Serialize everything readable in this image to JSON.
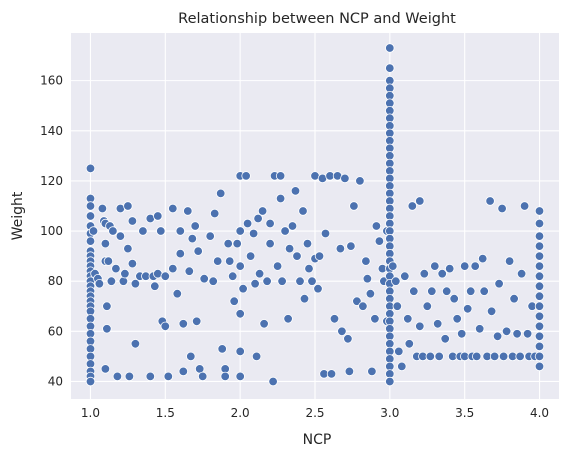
{
  "chart_data": {
    "type": "scatter",
    "title": "Relationship between NCP and Weight",
    "xlabel": "NCP",
    "ylabel": "Weight",
    "xlim": [
      0.87,
      4.13
    ],
    "ylim": [
      33,
      179
    ],
    "xticks": [
      "1.0",
      "1.5",
      "2.0",
      "2.5",
      "3.0",
      "3.5",
      "4.0"
    ],
    "xtick_values": [
      1.0,
      1.5,
      2.0,
      2.5,
      3.0,
      3.5,
      4.0
    ],
    "yticks": [
      "40",
      "60",
      "80",
      "100",
      "120",
      "140",
      "160"
    ],
    "ytick_values": [
      40,
      60,
      80,
      100,
      120,
      140,
      160
    ],
    "grid": true,
    "colors": {
      "background": "#EAEAF2",
      "grid": "#FFFFFF",
      "marker": "#4C72B0",
      "marker_edge": "#FFFFFF"
    },
    "series": [
      {
        "values": [
          [
            1.0,
            125
          ],
          [
            1.0,
            113
          ],
          [
            1.0,
            110
          ],
          [
            1.0,
            106
          ],
          [
            1.0,
            102
          ],
          [
            1.0,
            99
          ],
          [
            1.0,
            96
          ],
          [
            1.0,
            92
          ],
          [
            1.0,
            90
          ],
          [
            1.0,
            88
          ],
          [
            1.0,
            86
          ],
          [
            1.0,
            84
          ],
          [
            1.0,
            82
          ],
          [
            1.0,
            80
          ],
          [
            1.0,
            78
          ],
          [
            1.0,
            76
          ],
          [
            1.0,
            74
          ],
          [
            1.0,
            72
          ],
          [
            1.0,
            70
          ],
          [
            1.0,
            68
          ],
          [
            1.0,
            65
          ],
          [
            1.0,
            62
          ],
          [
            1.0,
            59
          ],
          [
            1.0,
            56
          ],
          [
            1.0,
            53
          ],
          [
            1.0,
            50
          ],
          [
            1.0,
            47
          ],
          [
            1.0,
            44
          ],
          [
            1.0,
            42
          ],
          [
            1.0,
            40
          ],
          [
            1.02,
            100
          ],
          [
            1.03,
            83
          ],
          [
            1.05,
            81
          ],
          [
            1.06,
            79
          ],
          [
            1.08,
            109
          ],
          [
            1.09,
            104
          ],
          [
            1.1,
            103
          ],
          [
            1.1,
            95
          ],
          [
            1.1,
            88
          ],
          [
            1.11,
            70
          ],
          [
            1.11,
            61
          ],
          [
            1.1,
            45
          ],
          [
            1.12,
            88
          ],
          [
            1.13,
            102
          ],
          [
            1.14,
            80
          ],
          [
            1.15,
            100
          ],
          [
            1.17,
            85
          ],
          [
            1.18,
            42
          ],
          [
            1.2,
            109
          ],
          [
            1.2,
            98
          ],
          [
            1.22,
            80
          ],
          [
            1.23,
            83
          ],
          [
            1.25,
            110
          ],
          [
            1.25,
            93
          ],
          [
            1.26,
            42
          ],
          [
            1.28,
            87
          ],
          [
            1.28,
            104
          ],
          [
            1.3,
            79
          ],
          [
            1.3,
            55
          ],
          [
            1.33,
            82
          ],
          [
            1.35,
            100
          ],
          [
            1.37,
            82
          ],
          [
            1.4,
            105
          ],
          [
            1.4,
            42
          ],
          [
            1.42,
            82
          ],
          [
            1.43,
            78
          ],
          [
            1.45,
            106
          ],
          [
            1.45,
            83
          ],
          [
            1.47,
            100
          ],
          [
            1.48,
            64
          ],
          [
            1.5,
            62
          ],
          [
            1.5,
            82
          ],
          [
            1.52,
            42
          ],
          [
            1.55,
            109
          ],
          [
            1.55,
            85
          ],
          [
            1.58,
            75
          ],
          [
            1.6,
            100
          ],
          [
            1.6,
            91
          ],
          [
            1.62,
            44
          ],
          [
            1.62,
            63
          ],
          [
            1.65,
            108
          ],
          [
            1.66,
            84
          ],
          [
            1.67,
            50
          ],
          [
            1.68,
            97
          ],
          [
            1.7,
            102
          ],
          [
            1.71,
            64
          ],
          [
            1.72,
            92
          ],
          [
            1.73,
            45
          ],
          [
            1.75,
            42
          ],
          [
            1.76,
            81
          ],
          [
            1.8,
            98
          ],
          [
            1.82,
            80
          ],
          [
            1.83,
            107
          ],
          [
            1.85,
            88
          ],
          [
            1.87,
            115
          ],
          [
            1.88,
            53
          ],
          [
            1.9,
            45
          ],
          [
            1.9,
            42
          ],
          [
            1.92,
            95
          ],
          [
            1.93,
            88
          ],
          [
            1.95,
            82
          ],
          [
            1.96,
            72
          ],
          [
            1.98,
            95
          ],
          [
            2.0,
            122
          ],
          [
            2.0,
            100
          ],
          [
            2.0,
            86
          ],
          [
            2.0,
            67
          ],
          [
            2.0,
            52
          ],
          [
            2.0,
            42
          ],
          [
            2.02,
            77
          ],
          [
            2.04,
            122
          ],
          [
            2.05,
            103
          ],
          [
            2.07,
            90
          ],
          [
            2.09,
            99
          ],
          [
            2.1,
            79
          ],
          [
            2.11,
            50
          ],
          [
            2.12,
            105
          ],
          [
            2.13,
            83
          ],
          [
            2.15,
            108
          ],
          [
            2.16,
            63
          ],
          [
            2.18,
            80
          ],
          [
            2.2,
            103
          ],
          [
            2.2,
            95
          ],
          [
            2.22,
            40
          ],
          [
            2.23,
            122
          ],
          [
            2.25,
            86
          ],
          [
            2.27,
            113
          ],
          [
            2.27,
            122
          ],
          [
            2.28,
            80
          ],
          [
            2.3,
            100
          ],
          [
            2.32,
            65
          ],
          [
            2.33,
            93
          ],
          [
            2.35,
            102
          ],
          [
            2.37,
            116
          ],
          [
            2.38,
            90
          ],
          [
            2.4,
            80
          ],
          [
            2.42,
            108
          ],
          [
            2.43,
            73
          ],
          [
            2.45,
            95
          ],
          [
            2.46,
            85
          ],
          [
            2.48,
            80
          ],
          [
            2.5,
            122
          ],
          [
            2.5,
            89
          ],
          [
            2.52,
            77
          ],
          [
            2.53,
            90
          ],
          [
            2.55,
            121
          ],
          [
            2.56,
            43
          ],
          [
            2.57,
            99
          ],
          [
            2.6,
            122
          ],
          [
            2.61,
            43
          ],
          [
            2.63,
            65
          ],
          [
            2.65,
            122
          ],
          [
            2.67,
            93
          ],
          [
            2.68,
            60
          ],
          [
            2.7,
            121
          ],
          [
            2.72,
            57
          ],
          [
            2.73,
            44
          ],
          [
            2.74,
            94
          ],
          [
            2.76,
            110
          ],
          [
            2.78,
            72
          ],
          [
            2.8,
            120
          ],
          [
            2.82,
            70
          ],
          [
            2.84,
            88
          ],
          [
            2.85,
            81
          ],
          [
            2.87,
            75
          ],
          [
            2.88,
            44
          ],
          [
            2.9,
            65
          ],
          [
            2.91,
            102
          ],
          [
            2.93,
            96
          ],
          [
            2.95,
            85
          ],
          [
            2.96,
            80
          ],
          [
            2.98,
            64
          ],
          [
            2.98,
            100
          ],
          [
            3.0,
            173
          ],
          [
            3.0,
            165
          ],
          [
            3.0,
            160
          ],
          [
            3.0,
            157
          ],
          [
            3.0,
            154
          ],
          [
            3.0,
            151
          ],
          [
            3.0,
            148
          ],
          [
            3.0,
            145
          ],
          [
            3.0,
            142
          ],
          [
            3.0,
            139
          ],
          [
            3.0,
            136
          ],
          [
            3.0,
            133
          ],
          [
            3.0,
            130
          ],
          [
            3.0,
            127
          ],
          [
            3.0,
            124
          ],
          [
            3.0,
            121
          ],
          [
            3.0,
            118
          ],
          [
            3.0,
            115
          ],
          [
            3.0,
            112
          ],
          [
            3.0,
            109
          ],
          [
            3.0,
            106
          ],
          [
            3.0,
            103
          ],
          [
            3.0,
            100
          ],
          [
            3.0,
            97
          ],
          [
            3.0,
            94
          ],
          [
            3.0,
            91
          ],
          [
            3.0,
            88
          ],
          [
            3.0,
            85
          ],
          [
            3.0,
            82
          ],
          [
            3.0,
            79
          ],
          [
            3.0,
            76
          ],
          [
            3.0,
            73
          ],
          [
            3.0,
            70
          ],
          [
            3.0,
            67
          ],
          [
            3.0,
            64
          ],
          [
            3.0,
            61
          ],
          [
            3.0,
            58
          ],
          [
            3.0,
            55
          ],
          [
            3.0,
            52
          ],
          [
            3.0,
            49
          ],
          [
            3.0,
            46
          ],
          [
            3.0,
            43
          ],
          [
            3.0,
            40
          ],
          [
            3.02,
            86
          ],
          [
            3.04,
            80
          ],
          [
            3.05,
            70
          ],
          [
            3.06,
            52
          ],
          [
            3.08,
            46
          ],
          [
            3.1,
            82
          ],
          [
            3.12,
            65
          ],
          [
            3.13,
            55
          ],
          [
            3.15,
            110
          ],
          [
            3.16,
            76
          ],
          [
            3.18,
            50
          ],
          [
            3.2,
            112
          ],
          [
            3.2,
            62
          ],
          [
            3.22,
            50
          ],
          [
            3.23,
            83
          ],
          [
            3.25,
            70
          ],
          [
            3.27,
            50
          ],
          [
            3.28,
            76
          ],
          [
            3.3,
            86
          ],
          [
            3.32,
            63
          ],
          [
            3.33,
            50
          ],
          [
            3.35,
            83
          ],
          [
            3.37,
            57
          ],
          [
            3.38,
            76
          ],
          [
            3.4,
            85
          ],
          [
            3.42,
            50
          ],
          [
            3.43,
            73
          ],
          [
            3.45,
            65
          ],
          [
            3.47,
            50
          ],
          [
            3.48,
            59
          ],
          [
            3.5,
            86
          ],
          [
            3.5,
            50
          ],
          [
            3.52,
            69
          ],
          [
            3.54,
            76
          ],
          [
            3.55,
            50
          ],
          [
            3.57,
            86
          ],
          [
            3.58,
            50
          ],
          [
            3.6,
            61
          ],
          [
            3.62,
            89
          ],
          [
            3.63,
            76
          ],
          [
            3.65,
            50
          ],
          [
            3.67,
            112
          ],
          [
            3.68,
            68
          ],
          [
            3.7,
            50
          ],
          [
            3.72,
            58
          ],
          [
            3.73,
            79
          ],
          [
            3.75,
            109
          ],
          [
            3.76,
            50
          ],
          [
            3.78,
            60
          ],
          [
            3.8,
            88
          ],
          [
            3.82,
            50
          ],
          [
            3.83,
            73
          ],
          [
            3.85,
            59
          ],
          [
            3.87,
            50
          ],
          [
            3.88,
            83
          ],
          [
            3.9,
            110
          ],
          [
            3.92,
            59
          ],
          [
            3.93,
            50
          ],
          [
            3.95,
            70
          ],
          [
            3.97,
            50
          ],
          [
            4.0,
            108
          ],
          [
            4.0,
            103
          ],
          [
            4.0,
            98
          ],
          [
            4.0,
            94
          ],
          [
            4.0,
            90
          ],
          [
            4.0,
            86
          ],
          [
            4.0,
            82
          ],
          [
            4.0,
            78
          ],
          [
            4.0,
            74
          ],
          [
            4.0,
            70
          ],
          [
            4.0,
            66
          ],
          [
            4.0,
            62
          ],
          [
            4.0,
            58
          ],
          [
            4.0,
            54
          ],
          [
            4.0,
            50
          ],
          [
            4.0,
            46
          ]
        ]
      }
    ]
  }
}
